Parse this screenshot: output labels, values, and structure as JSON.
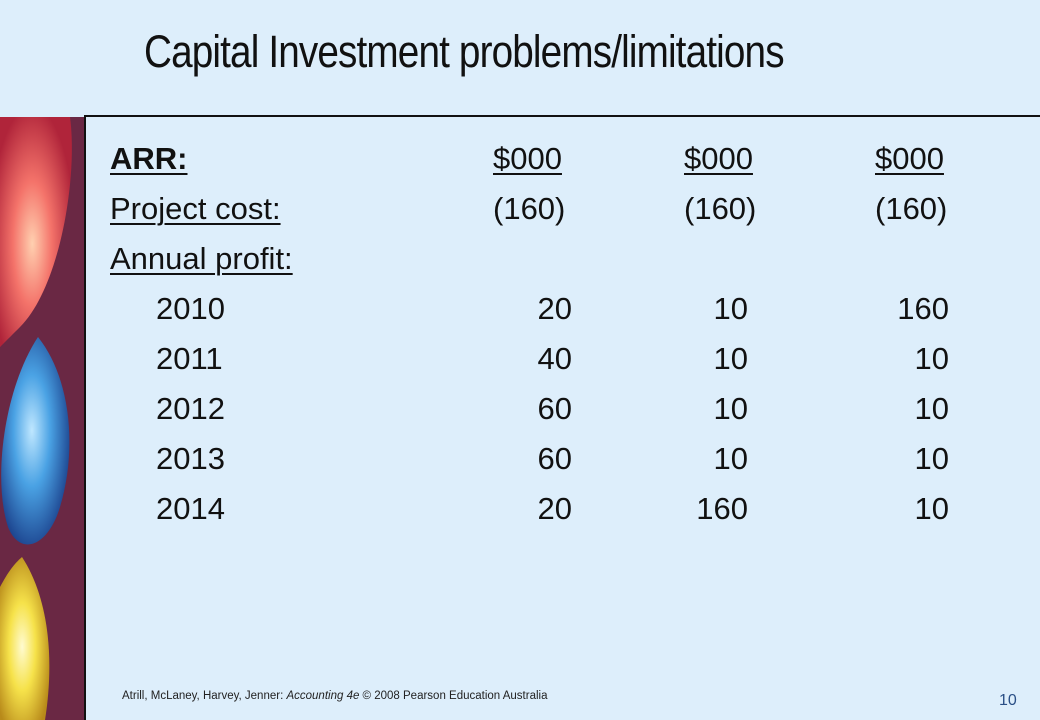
{
  "slide": {
    "title": "Capital Investment problems/limitations",
    "header_row": {
      "label": "ARR:",
      "col1": "$000",
      "col2": "$000",
      "col3": "$000"
    },
    "cost_row": {
      "label": "Project cost:",
      "col1": "(160)",
      "col2": "(160)",
      "col3": "(160)"
    },
    "profit_label": "Annual profit:",
    "years": [
      {
        "year": "2010",
        "col1": "20",
        "col2": "10",
        "col3": "160"
      },
      {
        "year": "2011",
        "col1": "40",
        "col2": "10",
        "col3": "10"
      },
      {
        "year": "2012",
        "col1": "60",
        "col2": "10",
        "col3": "10"
      },
      {
        "year": "2013",
        "col1": "60",
        "col2": "10",
        "col3": "10"
      },
      {
        "year": "2014",
        "col1": "20",
        "col2": "160",
        "col3": "10"
      }
    ],
    "footer": {
      "authors": "Atrill, McLaney, Harvey, Jenner: ",
      "book": "Accounting 4e",
      "copyright": " © 2008 Pearson Education Australia"
    },
    "page_number": "10"
  },
  "colors": {
    "background": "#ddeefb",
    "page_number": "#2a4f86"
  }
}
